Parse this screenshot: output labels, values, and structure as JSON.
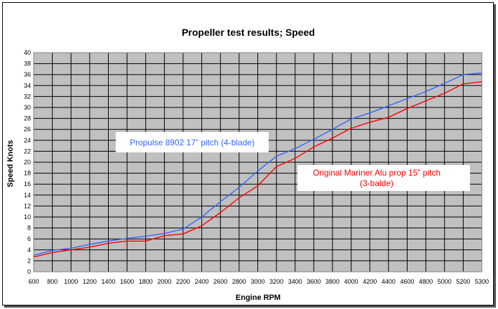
{
  "chart_data": {
    "type": "line",
    "title": "Propeller test results; Speed",
    "xlabel": "Engine RPM",
    "ylabel": "Speed Knots",
    "x": [
      600,
      800,
      1000,
      1200,
      1400,
      1600,
      1800,
      2000,
      2200,
      2400,
      2600,
      2800,
      3000,
      3200,
      3400,
      3600,
      3800,
      4000,
      4200,
      4400,
      4600,
      4800,
      5000,
      5200,
      5300
    ],
    "ylim": [
      0,
      40
    ],
    "yticks": [
      0,
      2,
      4,
      6,
      8,
      10,
      12,
      14,
      16,
      18,
      20,
      22,
      24,
      26,
      28,
      30,
      32,
      34,
      36,
      38,
      40
    ],
    "grid": true,
    "plot_background": "#c0c0c0",
    "series": [
      {
        "color": "#3366ff",
        "values": [
          3.0,
          3.9,
          4.3,
          5.0,
          5.6,
          6.1,
          6.5,
          7.0,
          7.8,
          10.0,
          12.8,
          15.4,
          18.4,
          21.1,
          22.5,
          24.2,
          26.0,
          27.9,
          29.0,
          30.3,
          31.6,
          32.9,
          34.4,
          36.0,
          36.3
        ]
      },
      {
        "color": "#ff0000",
        "values": [
          2.7,
          3.5,
          4.0,
          4.5,
          5.2,
          5.6,
          5.6,
          6.6,
          6.9,
          8.4,
          10.8,
          13.5,
          15.7,
          19.2,
          20.7,
          22.8,
          24.4,
          26.2,
          27.3,
          28.2,
          29.8,
          31.2,
          32.6,
          34.3,
          34.7
        ]
      }
    ],
    "annotations": [
      {
        "text": "Propulse 8902 17” pitch (4-blade)",
        "color": "#3366ff"
      },
      {
        "text": "Original Mariner Alu prop 15” pitch",
        "text2": "(3-balde)",
        "color": "#ff0000"
      }
    ]
  }
}
